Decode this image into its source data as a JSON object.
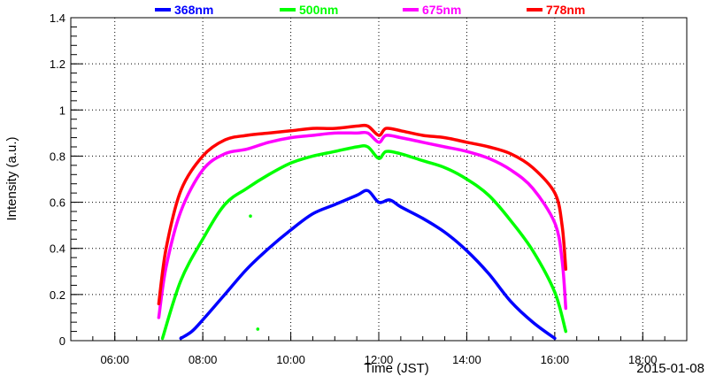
{
  "chart_data": {
    "type": "line",
    "xlabel": "Time (JST)",
    "ylabel": "Intensity (a.u.)",
    "date_label": "2015-01-08",
    "xlim": [
      "05:00",
      "19:00"
    ],
    "ylim": [
      0,
      1.4
    ],
    "x_ticks": [
      "06:00",
      "08:00",
      "10:00",
      "12:00",
      "14:00",
      "16:00",
      "18:00"
    ],
    "y_ticks": [
      "0",
      "0.2",
      "0.4",
      "0.6",
      "0.8",
      "1",
      "1.2",
      "1.4"
    ],
    "grid": true,
    "legend_position": "top",
    "series": [
      {
        "name": "368nm",
        "color": "#0000ff",
        "x": [
          "07:30",
          "07:45",
          "08:00",
          "08:30",
          "09:00",
          "09:30",
          "10:00",
          "10:30",
          "11:00",
          "11:30",
          "11:45",
          "12:00",
          "12:15",
          "12:30",
          "13:00",
          "13:30",
          "14:00",
          "14:30",
          "15:00",
          "15:30",
          "16:00"
        ],
        "values": [
          0.01,
          0.04,
          0.09,
          0.2,
          0.31,
          0.4,
          0.48,
          0.55,
          0.59,
          0.63,
          0.65,
          0.6,
          0.61,
          0.58,
          0.53,
          0.47,
          0.39,
          0.29,
          0.17,
          0.08,
          0.01
        ]
      },
      {
        "name": "500nm",
        "color": "#00ff00",
        "x": [
          "07:05",
          "07:30",
          "08:00",
          "08:30",
          "09:00",
          "09:30",
          "10:00",
          "10:30",
          "11:00",
          "11:30",
          "11:45",
          "12:00",
          "12:10",
          "12:30",
          "13:00",
          "13:30",
          "14:00",
          "14:30",
          "15:00",
          "15:30",
          "16:00",
          "16:15"
        ],
        "values": [
          0.01,
          0.26,
          0.44,
          0.59,
          0.66,
          0.72,
          0.77,
          0.8,
          0.82,
          0.84,
          0.84,
          0.79,
          0.82,
          0.81,
          0.78,
          0.75,
          0.7,
          0.63,
          0.52,
          0.39,
          0.21,
          0.04
        ]
      },
      {
        "name": "675nm",
        "color": "#ff00ff",
        "x": [
          "07:00",
          "07:10",
          "07:30",
          "08:00",
          "08:30",
          "09:00",
          "09:30",
          "10:00",
          "10:30",
          "11:00",
          "11:30",
          "11:45",
          "12:00",
          "12:10",
          "12:30",
          "13:00",
          "13:30",
          "14:00",
          "14:30",
          "15:00",
          "15:30",
          "16:00",
          "16:10",
          "16:15"
        ],
        "values": [
          0.1,
          0.32,
          0.56,
          0.74,
          0.81,
          0.83,
          0.86,
          0.88,
          0.89,
          0.9,
          0.9,
          0.9,
          0.86,
          0.89,
          0.88,
          0.86,
          0.84,
          0.82,
          0.79,
          0.74,
          0.66,
          0.51,
          0.35,
          0.14
        ]
      },
      {
        "name": "778nm",
        "color": "#ff0000",
        "x": [
          "07:00",
          "07:10",
          "07:30",
          "08:00",
          "08:30",
          "09:00",
          "09:30",
          "10:00",
          "10:30",
          "11:00",
          "11:30",
          "11:45",
          "12:00",
          "12:10",
          "12:30",
          "13:00",
          "13:30",
          "14:00",
          "14:30",
          "15:00",
          "15:30",
          "16:00",
          "16:10",
          "16:15"
        ],
        "values": [
          0.16,
          0.4,
          0.65,
          0.8,
          0.87,
          0.89,
          0.9,
          0.91,
          0.92,
          0.92,
          0.93,
          0.93,
          0.89,
          0.92,
          0.91,
          0.89,
          0.88,
          0.86,
          0.84,
          0.81,
          0.75,
          0.64,
          0.5,
          0.31
        ]
      }
    ],
    "outliers": [
      {
        "series": "500nm",
        "x": "09:05",
        "value": 0.54
      },
      {
        "series": "500nm",
        "x": "09:15",
        "value": 0.05
      }
    ]
  }
}
